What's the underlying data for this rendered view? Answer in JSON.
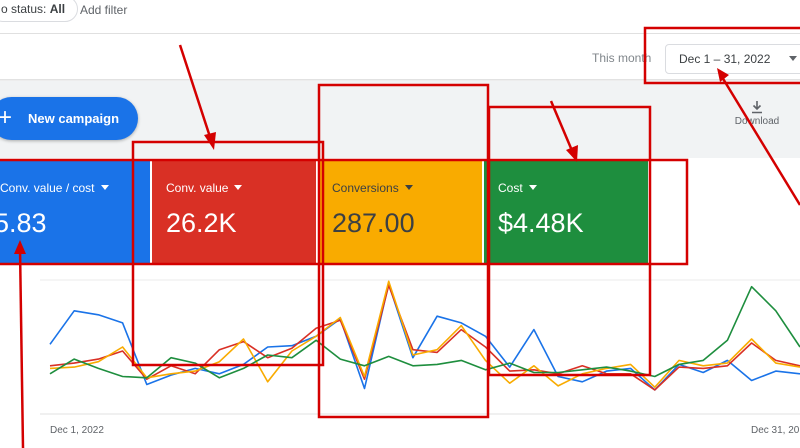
{
  "filters": {
    "status_prefix": "o status: ",
    "status_value": "All",
    "add_filter": "Add filter"
  },
  "date_range": {
    "period": "This month",
    "value": "Dec 1 – 31, 2022"
  },
  "actions": {
    "new_campaign": "New campaign",
    "download": "Download"
  },
  "scorecards": [
    {
      "label": "Conv. value / cost",
      "value": "5.83",
      "color": "#1a73e8"
    },
    {
      "label": "Conv. value",
      "value": "26.2K",
      "color": "#d93025"
    },
    {
      "label": "Conversions",
      "value": "287.00",
      "color": "#f9ab00"
    },
    {
      "label": "Cost",
      "value": "$4.48K",
      "color": "#1e8e3e"
    }
  ],
  "chart_data": {
    "type": "line",
    "x_start_label": "Dec 1, 2022",
    "x_end_label": "Dec 31, 20",
    "series": [
      {
        "color": "#1a73e8",
        "values": [
          0.52,
          0.77,
          0.74,
          0.68,
          0.22,
          0.29,
          0.34,
          0.3,
          0.37,
          0.5,
          0.51,
          0.58,
          0.71,
          0.19,
          0.97,
          0.42,
          0.73,
          0.68,
          0.58,
          0.35,
          0.63,
          0.28,
          0.24,
          0.32,
          0.34,
          0.18,
          0.37,
          0.31,
          0.4,
          0.25,
          0.32,
          0.3
        ]
      },
      {
        "color": "#d93025",
        "values": [
          0.36,
          0.38,
          0.41,
          0.47,
          0.26,
          0.36,
          0.3,
          0.48,
          0.54,
          0.42,
          0.49,
          0.64,
          0.7,
          0.26,
          0.96,
          0.48,
          0.46,
          0.63,
          0.5,
          0.32,
          0.33,
          0.3,
          0.36,
          0.3,
          0.3,
          0.18,
          0.35,
          0.34,
          0.36,
          0.53,
          0.4,
          0.36
        ]
      },
      {
        "color": "#f9ab00",
        "values": [
          0.34,
          0.35,
          0.39,
          0.5,
          0.27,
          0.3,
          0.32,
          0.39,
          0.56,
          0.24,
          0.47,
          0.58,
          0.72,
          0.28,
          0.99,
          0.44,
          0.48,
          0.66,
          0.4,
          0.23,
          0.36,
          0.21,
          0.3,
          0.34,
          0.37,
          0.2,
          0.4,
          0.36,
          0.38,
          0.56,
          0.38,
          0.35
        ]
      },
      {
        "color": "#1e8e3e",
        "values": [
          0.3,
          0.41,
          0.34,
          0.28,
          0.27,
          0.42,
          0.38,
          0.27,
          0.34,
          0.44,
          0.42,
          0.55,
          0.41,
          0.36,
          0.43,
          0.36,
          0.37,
          0.4,
          0.33,
          0.38,
          0.31,
          0.31,
          0.33,
          0.35,
          0.32,
          0.28,
          0.37,
          0.4,
          0.55,
          0.95,
          0.77,
          0.5
        ]
      }
    ]
  }
}
